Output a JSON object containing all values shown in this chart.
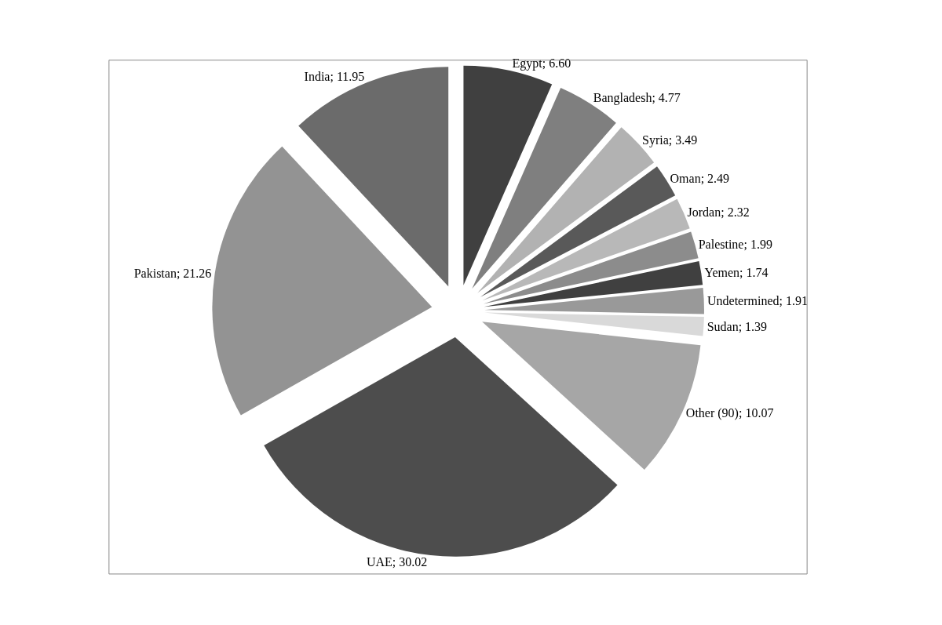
{
  "chart_data": {
    "type": "pie",
    "categories": [
      "Egypt",
      "Bangladesh",
      "Syria",
      "Oman",
      "Jordan",
      "Palestine",
      "Yemen",
      "Undetermined",
      "Sudan",
      "Other (90)",
      "UAE",
      "Pakistan",
      "India"
    ],
    "values": [
      6.6,
      4.77,
      3.49,
      2.49,
      2.32,
      1.99,
      1.74,
      1.91,
      1.39,
      10.07,
      30.02,
      21.26,
      11.95
    ],
    "value_labels": [
      "6.60",
      "4.77",
      "3.49",
      "2.49",
      "2.32",
      "1.99",
      "1.74",
      "1.91",
      "1.39",
      "10.07",
      "30.02",
      "21.26",
      "11.95"
    ],
    "colors": [
      "#404040",
      "#7f7f7f",
      "#b2b2b2",
      "#595959",
      "#b8b8b8",
      "#8c8c8c",
      "#404040",
      "#999999",
      "#d9d9d9",
      "#a6a6a6",
      "#4d4d4d",
      "#939393",
      "#6b6b6b"
    ],
    "legend": false
  }
}
